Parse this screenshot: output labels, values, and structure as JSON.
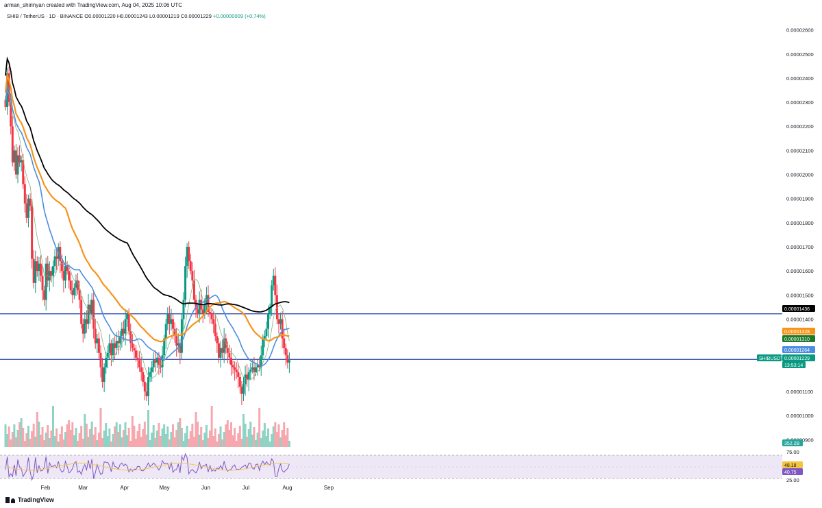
{
  "header": {
    "created_by": "arman_shirinyan created with TradingView.com, Aug 04, 2025 10:06 UTC",
    "symbol": "SHIB / TetherUS · 1D · BINANCE",
    "open": "O0.00001220",
    "high": "H0.00001243",
    "low": "L0.00001219",
    "close": "C0.00001229",
    "change": "+0.00000009 (+0.74%)"
  },
  "brand": "TradingView",
  "chart_data": {
    "type": "candlestick",
    "price_axis_labels": [
      "0.00002600",
      "0.00002500",
      "0.00002400",
      "0.00002300",
      "0.00002200",
      "0.00002100",
      "0.00002000",
      "0.00001900",
      "0.00001800",
      "0.00001700",
      "0.00001600",
      "0.00001500",
      "0.00001400",
      "0.00001100",
      "0.00001000",
      "0.00000900"
    ],
    "price_ticks": [
      2600,
      2500,
      2400,
      2300,
      2200,
      2100,
      2000,
      1900,
      1800,
      1700,
      1600,
      1500,
      1400,
      1100,
      1000,
      900
    ],
    "price_unit_note": "prices x 1e-8",
    "time_axis": [
      "Feb",
      "Mar",
      "Apr",
      "May",
      "Jun",
      "Jul",
      "Aug",
      "Sep"
    ],
    "time_axis_day_index": [
      31,
      59,
      90,
      120,
      151,
      181,
      212,
      243
    ],
    "horizontal_lines": [
      1422,
      1233
    ],
    "badges": [
      {
        "label": "0.00001436",
        "value": 1436,
        "color": "#000000"
      },
      {
        "label": "0.00001328",
        "value": 1328,
        "color": "#f7931a"
      },
      {
        "label": "0.00001310",
        "value": 1310,
        "color": "#1b7a2c"
      },
      {
        "label": "0.00001264",
        "value": 1264,
        "color": "#4a8de0"
      },
      {
        "label": "SHIBUSDT",
        "value": 1229,
        "color": "#089981"
      },
      {
        "label": "0.00001229",
        "value": 1229,
        "color": "#089981"
      },
      {
        "label": "13:53:14",
        "value": 1203,
        "color": "#089981"
      }
    ],
    "volume_label": "352.2B",
    "rsi": {
      "levels": [
        "75.00",
        "25.00"
      ],
      "values": [
        "48.18",
        "40.75"
      ]
    },
    "candles_close_path": [
      [
        1,
        2280
      ],
      [
        2,
        2420
      ],
      [
        3,
        2300
      ],
      [
        4,
        2200
      ],
      [
        5,
        2050
      ],
      [
        6,
        2100
      ],
      [
        7,
        2000
      ],
      [
        8,
        2080
      ],
      [
        9,
        2050
      ],
      [
        10,
        2060
      ],
      [
        11,
        1960
      ],
      [
        12,
        1880
      ],
      [
        13,
        1820
      ],
      [
        14,
        1900
      ],
      [
        15,
        1870
      ],
      [
        16,
        1650
      ],
      [
        17,
        1550
      ],
      [
        18,
        1640
      ],
      [
        19,
        1600
      ],
      [
        20,
        1630
      ],
      [
        21,
        1580
      ],
      [
        22,
        1520
      ],
      [
        23,
        1480
      ],
      [
        24,
        1630
      ],
      [
        25,
        1560
      ],
      [
        26,
        1600
      ],
      [
        27,
        1580
      ],
      [
        28,
        1620
      ],
      [
        29,
        1660
      ],
      [
        30,
        1650
      ],
      [
        31,
        1700
      ],
      [
        32,
        1640
      ],
      [
        33,
        1600
      ],
      [
        34,
        1560
      ],
      [
        35,
        1620
      ],
      [
        36,
        1600
      ],
      [
        37,
        1560
      ],
      [
        38,
        1520
      ],
      [
        39,
        1500
      ],
      [
        40,
        1530
      ],
      [
        41,
        1560
      ],
      [
        42,
        1520
      ],
      [
        43,
        1480
      ],
      [
        44,
        1380
      ],
      [
        45,
        1340
      ],
      [
        46,
        1400
      ],
      [
        47,
        1380
      ],
      [
        48,
        1460
      ],
      [
        49,
        1420
      ],
      [
        50,
        1480
      ],
      [
        51,
        1360
      ],
      [
        52,
        1300
      ],
      [
        53,
        1320
      ],
      [
        54,
        1260
      ],
      [
        55,
        1200
      ],
      [
        56,
        1140
      ],
      [
        57,
        1200
      ],
      [
        58,
        1240
      ],
      [
        59,
        1260
      ],
      [
        60,
        1300
      ],
      [
        61,
        1250
      ],
      [
        62,
        1300
      ],
      [
        63,
        1280
      ],
      [
        64,
        1310
      ],
      [
        65,
        1300
      ],
      [
        66,
        1330
      ],
      [
        67,
        1360
      ],
      [
        68,
        1340
      ],
      [
        69,
        1400
      ],
      [
        70,
        1420
      ],
      [
        71,
        1350
      ],
      [
        72,
        1300
      ],
      [
        73,
        1280
      ],
      [
        74,
        1270
      ],
      [
        75,
        1240
      ],
      [
        76,
        1230
      ],
      [
        77,
        1200
      ],
      [
        78,
        1180
      ],
      [
        79,
        1140
      ],
      [
        80,
        1100
      ],
      [
        81,
        1080
      ],
      [
        82,
        1160
      ],
      [
        83,
        1180
      ],
      [
        84,
        1200
      ],
      [
        85,
        1230
      ],
      [
        86,
        1220
      ],
      [
        87,
        1240
      ],
      [
        88,
        1210
      ],
      [
        89,
        1200
      ],
      [
        90,
        1250
      ],
      [
        91,
        1320
      ],
      [
        92,
        1380
      ],
      [
        93,
        1420
      ],
      [
        94,
        1380
      ],
      [
        95,
        1400
      ],
      [
        96,
        1360
      ],
      [
        97,
        1330
      ],
      [
        98,
        1290
      ],
      [
        99,
        1300
      ],
      [
        100,
        1260
      ],
      [
        101,
        1400
      ],
      [
        102,
        1480
      ],
      [
        103,
        1620
      ],
      [
        104,
        1700
      ],
      [
        105,
        1640
      ],
      [
        106,
        1600
      ],
      [
        107,
        1560
      ],
      [
        108,
        1480
      ],
      [
        109,
        1440
      ],
      [
        110,
        1420
      ],
      [
        111,
        1480
      ],
      [
        112,
        1440
      ],
      [
        113,
        1420
      ],
      [
        114,
        1460
      ],
      [
        115,
        1500
      ],
      [
        116,
        1430
      ],
      [
        117,
        1420
      ],
      [
        118,
        1400
      ],
      [
        119,
        1380
      ],
      [
        120,
        1330
      ],
      [
        121,
        1300
      ],
      [
        122,
        1240
      ],
      [
        123,
        1280
      ],
      [
        124,
        1260
      ],
      [
        125,
        1320
      ],
      [
        126,
        1280
      ],
      [
        127,
        1260
      ],
      [
        128,
        1240
      ],
      [
        129,
        1210
      ],
      [
        130,
        1200
      ],
      [
        131,
        1190
      ],
      [
        132,
        1180
      ],
      [
        133,
        1160
      ],
      [
        134,
        1120
      ],
      [
        135,
        1090
      ],
      [
        136,
        1130
      ],
      [
        137,
        1170
      ],
      [
        138,
        1150
      ],
      [
        139,
        1180
      ],
      [
        140,
        1190
      ],
      [
        141,
        1200
      ],
      [
        142,
        1180
      ],
      [
        143,
        1200
      ],
      [
        144,
        1210
      ],
      [
        145,
        1200
      ],
      [
        146,
        1250
      ],
      [
        147,
        1320
      ],
      [
        148,
        1330
      ],
      [
        149,
        1360
      ],
      [
        150,
        1420
      ],
      [
        151,
        1450
      ],
      [
        152,
        1540
      ],
      [
        153,
        1580
      ],
      [
        154,
        1500
      ],
      [
        155,
        1400
      ],
      [
        156,
        1380
      ],
      [
        157,
        1400
      ],
      [
        158,
        1320
      ],
      [
        159,
        1280
      ],
      [
        160,
        1250
      ],
      [
        161,
        1220
      ],
      [
        162,
        1230
      ]
    ]
  }
}
